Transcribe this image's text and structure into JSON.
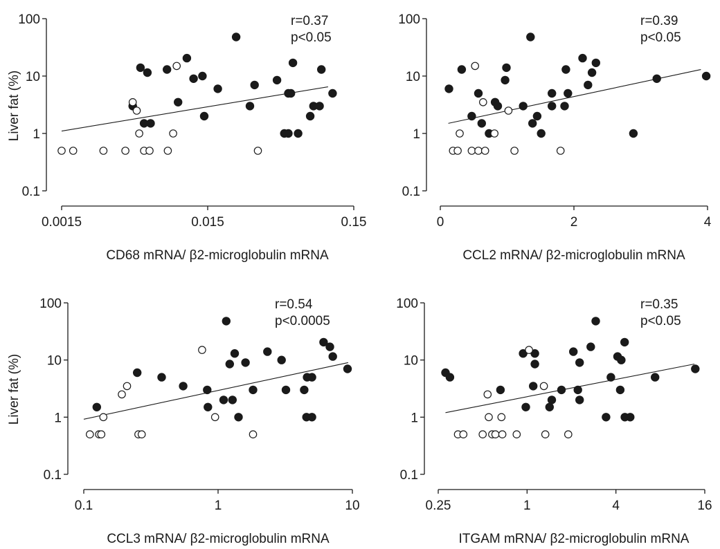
{
  "figure": {
    "background": "#ffffff",
    "ink": "#1a1a1a"
  },
  "chart_data": [
    {
      "type": "scatter",
      "xlabel": "CD68 mRNA/ β2-microglobulin mRNA",
      "ylabel": "Liver fat (%)",
      "xscale": "log",
      "yscale": "log",
      "xlim": [
        0.0015,
        0.15
      ],
      "ylim": [
        0.1,
        100
      ],
      "xticks": [
        0.0015,
        0.015,
        0.15
      ],
      "xticklabels": [
        "0.0015",
        "0.015",
        "0.15"
      ],
      "yticks": [
        0.1,
        1,
        10,
        100
      ],
      "yticklabels": [
        "0.1",
        "1",
        "10",
        "100"
      ],
      "annotation": [
        "r=0.37",
        "p<0.05"
      ],
      "fit": {
        "x": [
          0.0015,
          0.1
        ],
        "y": [
          1.1,
          6.5
        ]
      },
      "series": [
        {
          "marker": "filled",
          "points": [
            [
              0.0046,
              3
            ],
            [
              0.0052,
              14
            ],
            [
              0.0055,
              1.5
            ],
            [
              0.0058,
              11.5
            ],
            [
              0.0061,
              1.5
            ],
            [
              0.0079,
              13
            ],
            [
              0.0094,
              3.5
            ],
            [
              0.0108,
              20.5
            ],
            [
              0.012,
              9
            ],
            [
              0.0138,
              10
            ],
            [
              0.0142,
              2
            ],
            [
              0.0176,
              6
            ],
            [
              0.0235,
              48
            ],
            [
              0.0292,
              3
            ],
            [
              0.0314,
              7
            ],
            [
              0.0447,
              8.5
            ],
            [
              0.0502,
              1
            ],
            [
              0.0535,
              5
            ],
            [
              0.0535,
              1
            ],
            [
              0.0557,
              5
            ],
            [
              0.0575,
              17
            ],
            [
              0.0624,
              1
            ],
            [
              0.0755,
              2
            ],
            [
              0.0795,
              3
            ],
            [
              0.0875,
              3
            ],
            [
              0.09,
              13
            ],
            [
              0.1074,
              5
            ]
          ]
        },
        {
          "marker": "open",
          "points": [
            [
              0.0015,
              0.5
            ],
            [
              0.0018,
              0.5
            ],
            [
              0.0029,
              0.5
            ],
            [
              0.0041,
              0.5
            ],
            [
              0.0046,
              3.5
            ],
            [
              0.0049,
              2.5
            ],
            [
              0.0051,
              1
            ],
            [
              0.0055,
              0.5
            ],
            [
              0.006,
              0.5
            ],
            [
              0.008,
              0.5
            ],
            [
              0.0087,
              1
            ],
            [
              0.0092,
              15
            ],
            [
              0.0331,
              0.5
            ]
          ]
        }
      ]
    },
    {
      "type": "scatter",
      "xlabel": "CCL2 mRNA/ β2-microglobulin mRNA",
      "ylabel": "",
      "xscale": "linear",
      "yscale": "log",
      "xlim": [
        0,
        4
      ],
      "ylim": [
        0.1,
        100
      ],
      "xticks": [
        0,
        2,
        4
      ],
      "xticklabels": [
        "0",
        "2",
        "4"
      ],
      "yticks": [
        0.1,
        1,
        10,
        100
      ],
      "yticklabels": [
        "0.1",
        "1",
        "10",
        "100"
      ],
      "annotation": [
        "r=0.39",
        "p<0.05"
      ],
      "fit": {
        "x": [
          0.12,
          3.9
        ],
        "y": [
          1.5,
          13
        ]
      },
      "series": [
        {
          "marker": "filled",
          "points": [
            [
              0.13,
              6
            ],
            [
              0.32,
              13
            ],
            [
              0.47,
              2
            ],
            [
              0.57,
              5
            ],
            [
              0.62,
              1.5
            ],
            [
              0.73,
              1
            ],
            [
              0.82,
              3.5
            ],
            [
              0.86,
              3
            ],
            [
              0.97,
              8.5
            ],
            [
              0.99,
              14
            ],
            [
              1.24,
              3
            ],
            [
              1.35,
              48
            ],
            [
              1.38,
              1.5
            ],
            [
              1.45,
              2
            ],
            [
              1.51,
              1
            ],
            [
              1.67,
              5
            ],
            [
              1.67,
              3
            ],
            [
              1.86,
              3
            ],
            [
              1.88,
              13
            ],
            [
              1.91,
              5
            ],
            [
              2.13,
              20.5
            ],
            [
              2.21,
              7
            ],
            [
              2.27,
              11.5
            ],
            [
              2.33,
              17
            ],
            [
              2.89,
              1
            ],
            [
              3.24,
              9
            ],
            [
              3.98,
              10
            ]
          ]
        },
        {
          "marker": "open",
          "points": [
            [
              0.19,
              0.5
            ],
            [
              0.26,
              0.5
            ],
            [
              0.29,
              1
            ],
            [
              0.47,
              0.5
            ],
            [
              0.52,
              15
            ],
            [
              0.57,
              0.5
            ],
            [
              0.64,
              3.5
            ],
            [
              0.67,
              0.5
            ],
            [
              0.81,
              1
            ],
            [
              1.02,
              2.5
            ],
            [
              1.11,
              0.5
            ],
            [
              1.8,
              0.5
            ]
          ]
        }
      ]
    },
    {
      "type": "scatter",
      "xlabel": "CCL3 mRNA/ β2-microglobulin mRNA",
      "ylabel": "Liver fat (%)",
      "xscale": "log",
      "yscale": "log",
      "xlim": [
        0.1,
        10
      ],
      "ylim": [
        0.1,
        100
      ],
      "xticks": [
        0.1,
        1,
        10
      ],
      "xticklabels": [
        "0.1",
        "1",
        "10"
      ],
      "yticks": [
        0.1,
        1,
        10,
        100
      ],
      "yticklabels": [
        "0.1",
        "1",
        "10",
        "100"
      ],
      "annotation": [
        "r=0.54",
        "p<0.0005"
      ],
      "fit": {
        "x": [
          0.1,
          9.3
        ],
        "y": [
          0.92,
          9
        ]
      },
      "series": [
        {
          "marker": "filled",
          "points": [
            [
              0.125,
              1.5
            ],
            [
              0.25,
              6
            ],
            [
              0.38,
              5
            ],
            [
              0.55,
              3.5
            ],
            [
              0.83,
              3
            ],
            [
              0.84,
              1.5
            ],
            [
              1.1,
              2
            ],
            [
              1.15,
              48
            ],
            [
              1.22,
              8.5
            ],
            [
              1.28,
              2
            ],
            [
              1.33,
              13
            ],
            [
              1.42,
              1
            ],
            [
              1.6,
              9
            ],
            [
              1.82,
              3
            ],
            [
              2.33,
              14
            ],
            [
              2.97,
              10
            ],
            [
              3.2,
              3
            ],
            [
              4.38,
              3
            ],
            [
              4.55,
              1
            ],
            [
              4.6,
              5
            ],
            [
              5.0,
              1
            ],
            [
              5.0,
              5
            ],
            [
              6.1,
              20.5
            ],
            [
              6.8,
              17
            ],
            [
              7.15,
              11.5
            ],
            [
              9.2,
              7
            ]
          ]
        },
        {
          "marker": "open",
          "points": [
            [
              0.111,
              0.5
            ],
            [
              0.13,
              0.5
            ],
            [
              0.135,
              0.5
            ],
            [
              0.14,
              1
            ],
            [
              0.192,
              2.5
            ],
            [
              0.21,
              3.5
            ],
            [
              0.255,
              0.5
            ],
            [
              0.27,
              0.5
            ],
            [
              0.76,
              15
            ],
            [
              0.95,
              1
            ],
            [
              1.82,
              0.5
            ]
          ]
        }
      ]
    },
    {
      "type": "scatter",
      "xlabel": "ITGAM mRNA/ β2-microglobulin mRNA",
      "ylabel": "",
      "xscale": "log",
      "yscale": "log",
      "xlim": [
        0.25,
        16
      ],
      "ylim": [
        0.1,
        100
      ],
      "xticks": [
        0.25,
        1,
        4,
        16
      ],
      "xticklabels": [
        "0.25",
        "1",
        "4",
        "16"
      ],
      "yticks": [
        0.1,
        1,
        10,
        100
      ],
      "yticklabels": [
        "0.1",
        "1",
        "10",
        "100"
      ],
      "annotation": [
        "r=0.35",
        "p<0.05"
      ],
      "fit": {
        "x": [
          0.28,
          13.6
        ],
        "y": [
          1.2,
          8.5
        ]
      },
      "series": [
        {
          "marker": "filled",
          "points": [
            [
              0.28,
              6
            ],
            [
              0.3,
              5
            ],
            [
              0.66,
              3
            ],
            [
              0.94,
              13
            ],
            [
              0.98,
              1.5
            ],
            [
              1.1,
              3.5
            ],
            [
              1.13,
              13
            ],
            [
              1.13,
              8.5
            ],
            [
              1.42,
              1.5
            ],
            [
              1.47,
              2
            ],
            [
              1.71,
              3
            ],
            [
              2.06,
              14
            ],
            [
              2.21,
              3
            ],
            [
              2.27,
              9
            ],
            [
              2.27,
              2
            ],
            [
              2.7,
              17
            ],
            [
              2.92,
              48
            ],
            [
              3.43,
              1
            ],
            [
              3.7,
              5
            ],
            [
              4.1,
              11.5
            ],
            [
              4.28,
              3
            ],
            [
              4.35,
              10
            ],
            [
              4.58,
              20.5
            ],
            [
              4.6,
              1
            ],
            [
              5.0,
              1
            ],
            [
              7.37,
              5
            ],
            [
              13.8,
              7
            ]
          ]
        },
        {
          "marker": "open",
          "points": [
            [
              0.34,
              0.5
            ],
            [
              0.37,
              0.5
            ],
            [
              0.5,
              0.5
            ],
            [
              0.54,
              2.5
            ],
            [
              0.55,
              1
            ],
            [
              0.58,
              0.5
            ],
            [
              0.61,
              0.5
            ],
            [
              0.67,
              1
            ],
            [
              0.68,
              0.5
            ],
            [
              0.85,
              0.5
            ],
            [
              1.03,
              15
            ],
            [
              1.3,
              3.5
            ],
            [
              1.33,
              0.5
            ],
            [
              1.9,
              0.5
            ]
          ]
        }
      ]
    }
  ]
}
